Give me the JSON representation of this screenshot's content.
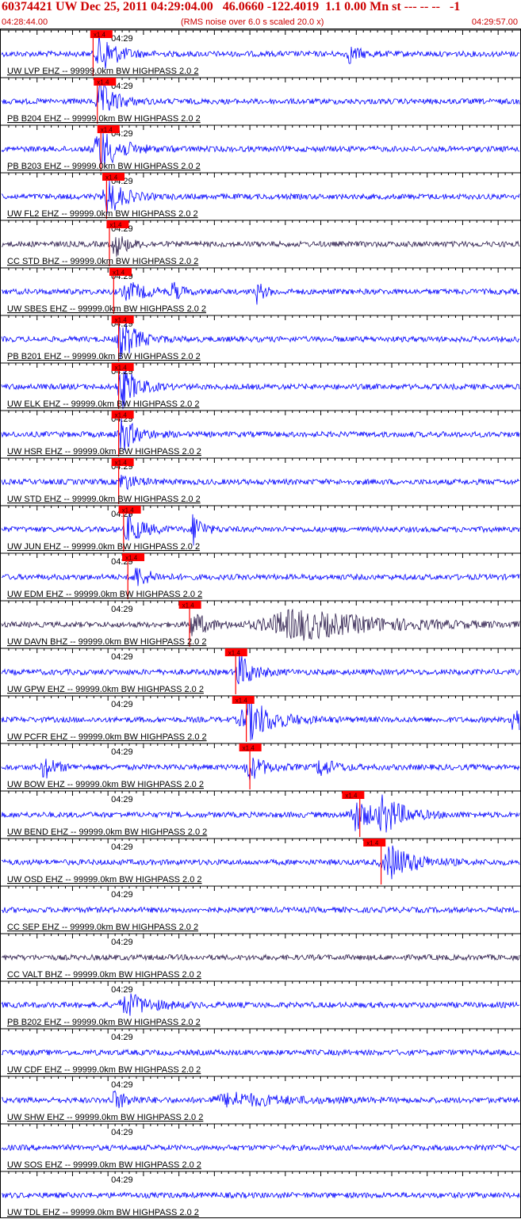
{
  "header": {
    "title": "60374421 UW Dec 25, 2011 04:29:04.00   46.0660 -122.4019  1.1 0.00 Mn st --- -- --   -1",
    "start_time": "04:28:44.00",
    "subtitle": "(RMS noise over 6.0 s scaled 20.0 x)",
    "end_time": "04:29:57.00"
  },
  "colors": {
    "trace_blue": "#0000ff",
    "trace_dark": "#2a1a4a",
    "pick_red": "#ff0000",
    "text_red": "#cc0000",
    "axis": "#000000"
  },
  "chart_data": {
    "type": "line",
    "x_range_seconds": [
      0,
      73
    ],
    "minute_label": "04:29",
    "minute_mark_seconds": 16,
    "pick_label": "x1.4",
    "traces": [
      {
        "label": "UW LVP EHZ -- 99999.0km BW  HIGHPASS  2.0  2",
        "color": "blue",
        "p": 12.5,
        "s": 12.9,
        "activity": [
          [
            14,
            1,
            1.0
          ],
          [
            49,
            0.6,
            0.4
          ]
        ]
      },
      {
        "label": "PB B204 EHZ -- 99999.0km BW  HIGHPASS  2.0  2",
        "color": "blue",
        "p": 13.0,
        "s": 13.5,
        "activity": [
          [
            14,
            1,
            0.9
          ]
        ]
      },
      {
        "label": "PB B203 EHZ -- 99999.0km BW  HIGHPASS  2.0  2",
        "color": "blue",
        "p": 13.5,
        "s": 14.0,
        "activity": [
          [
            14,
            1.5,
            1.0
          ]
        ]
      },
      {
        "label": "UW FL2 EHZ -- 99999.0km BW  HIGHPASS  2.0  2",
        "color": "blue",
        "p": 14.2,
        "s": 14.8,
        "activity": [
          [
            15,
            1,
            0.9
          ]
        ]
      },
      {
        "label": "CC STD BHZ -- 99999.0km BW  HIGHPASS  2.0  2",
        "color": "dark",
        "p": 14.8,
        "s": 15.2,
        "activity": [
          [
            16,
            0.6,
            0.6
          ]
        ]
      },
      {
        "label": "UW SBES EHZ -- 99999.0km BW  HIGHPASS  2.0  2",
        "color": "blue",
        "p": 15.2,
        "s": 15.8,
        "activity": [
          [
            18,
            1.5,
            0.4
          ],
          [
            24,
            0.2,
            0.5
          ],
          [
            36,
            0.2,
            0.5
          ]
        ]
      },
      {
        "label": "PB B201 EHZ -- 99999.0km BW  HIGHPASS  2.0  2",
        "color": "blue",
        "p": 15.5,
        "s": 16.5,
        "activity": [
          [
            17,
            1,
            1.0
          ]
        ]
      },
      {
        "label": "UW ELK EHZ -- 99999.0km BW  HIGHPASS  2.0  2",
        "color": "blue",
        "p": 15.5,
        "s": 16.5,
        "activity": [
          [
            17,
            1,
            1.0
          ]
        ]
      },
      {
        "label": "UW HSR EHZ -- 99999.0km BW  HIGHPASS  2.0  2",
        "color": "blue",
        "p": 15.5,
        "s": 16.5,
        "activity": [
          [
            17,
            1,
            0.8
          ]
        ]
      },
      {
        "label": "UW STD EHZ -- 99999.0km BW  HIGHPASS  2.0  2",
        "color": "blue",
        "p": 15.5,
        "s": 16.5,
        "activity": [
          [
            17,
            0.8,
            0.4
          ]
        ]
      },
      {
        "label": "UW JUN EHZ -- 99999.0km BW  HIGHPASS  2.0  2",
        "color": "blue",
        "p": 16.5,
        "s": 17.2,
        "activity": [
          [
            18,
            1,
            0.7
          ],
          [
            27,
            0.2,
            1.0
          ]
        ]
      },
      {
        "label": "UW EDM EHZ -- 99999.0km BW  HIGHPASS  2.0  2",
        "color": "blue",
        "p": 17.0,
        "s": 17.8,
        "activity": [
          [
            19,
            0.8,
            0.5
          ]
        ]
      },
      {
        "label": "UW DAVN BHZ -- 99999.0km BW  HIGHPASS  2.0  2",
        "color": "dark",
        "p": 25.0,
        "s": 26.5,
        "activity": [
          [
            27,
            1,
            0.6
          ],
          [
            42,
            8,
            0.7
          ]
        ]
      },
      {
        "label": "UW GPW EHZ -- 99999.0km BW  HIGHPASS  2.0  2",
        "color": "blue",
        "p": 31.5,
        "s": 33.0,
        "activity": [
          [
            33.5,
            0.8,
            0.9
          ]
        ]
      },
      {
        "label": "UW PCFR EHZ -- 99999.0km BW  HIGHPASS  2.0  2",
        "color": "blue",
        "p": 32.5,
        "s": 34.5,
        "activity": [
          [
            35,
            2,
            1.0
          ],
          [
            72,
            0.5,
            0.8
          ]
        ]
      },
      {
        "label": "UW BOW EHZ -- 99999.0km BW  HIGHPASS  2.0  2",
        "color": "blue",
        "p": 33.5,
        "s": 35.0,
        "activity": [
          [
            6,
            0.5,
            0.6
          ],
          [
            35,
            1,
            0.6
          ],
          [
            45,
            1,
            0.4
          ]
        ]
      },
      {
        "label": "UW BEND EHZ -- 99999.0km BW  HIGHPASS  2.0  2",
        "color": "blue",
        "p": 48.0,
        "s": 50.5,
        "activity": [
          [
            50,
            1.5,
            0.7
          ],
          [
            54,
            1.5,
            0.8
          ]
        ]
      },
      {
        "label": "UW OSD EHZ -- 99999.0km BW  HIGHPASS  2.0  2",
        "color": "blue",
        "p": 51.0,
        "s": 53.5,
        "activity": [
          [
            55,
            2,
            0.8
          ]
        ]
      },
      {
        "label": "CC SEP EHZ -- 99999.0km BW  HIGHPASS  2.0  2",
        "color": "blue",
        "p": null,
        "s": null,
        "activity": []
      },
      {
        "label": "CC VALT BHZ -- 99999.0km BW  HIGHPASS  2.0  2",
        "color": "dark",
        "p": null,
        "s": null,
        "activity": []
      },
      {
        "label": "PB B202 EHZ -- 99999.0km BW  HIGHPASS  2.0  2",
        "color": "blue",
        "p": null,
        "s": null,
        "activity": [
          [
            18,
            2,
            0.5
          ]
        ]
      },
      {
        "label": "UW CDF EHZ -- 99999.0km BW  HIGHPASS  2.0  2",
        "color": "blue",
        "p": null,
        "s": null,
        "activity": []
      },
      {
        "label": "UW SHW EHZ -- 99999.0km BW  HIGHPASS  2.0  2",
        "color": "blue",
        "p": null,
        "s": null,
        "activity": [
          [
            16,
            1,
            0.4
          ],
          [
            33,
            5,
            0.3
          ]
        ]
      },
      {
        "label": "UW SOS EHZ -- 99999.0km BW  HIGHPASS  2.0  2",
        "color": "blue",
        "p": null,
        "s": null,
        "activity": []
      },
      {
        "label": "UW TDL EHZ -- 99999.0km BW  HIGHPASS  2.0  2",
        "color": "blue",
        "p": null,
        "s": null,
        "activity": []
      }
    ]
  }
}
